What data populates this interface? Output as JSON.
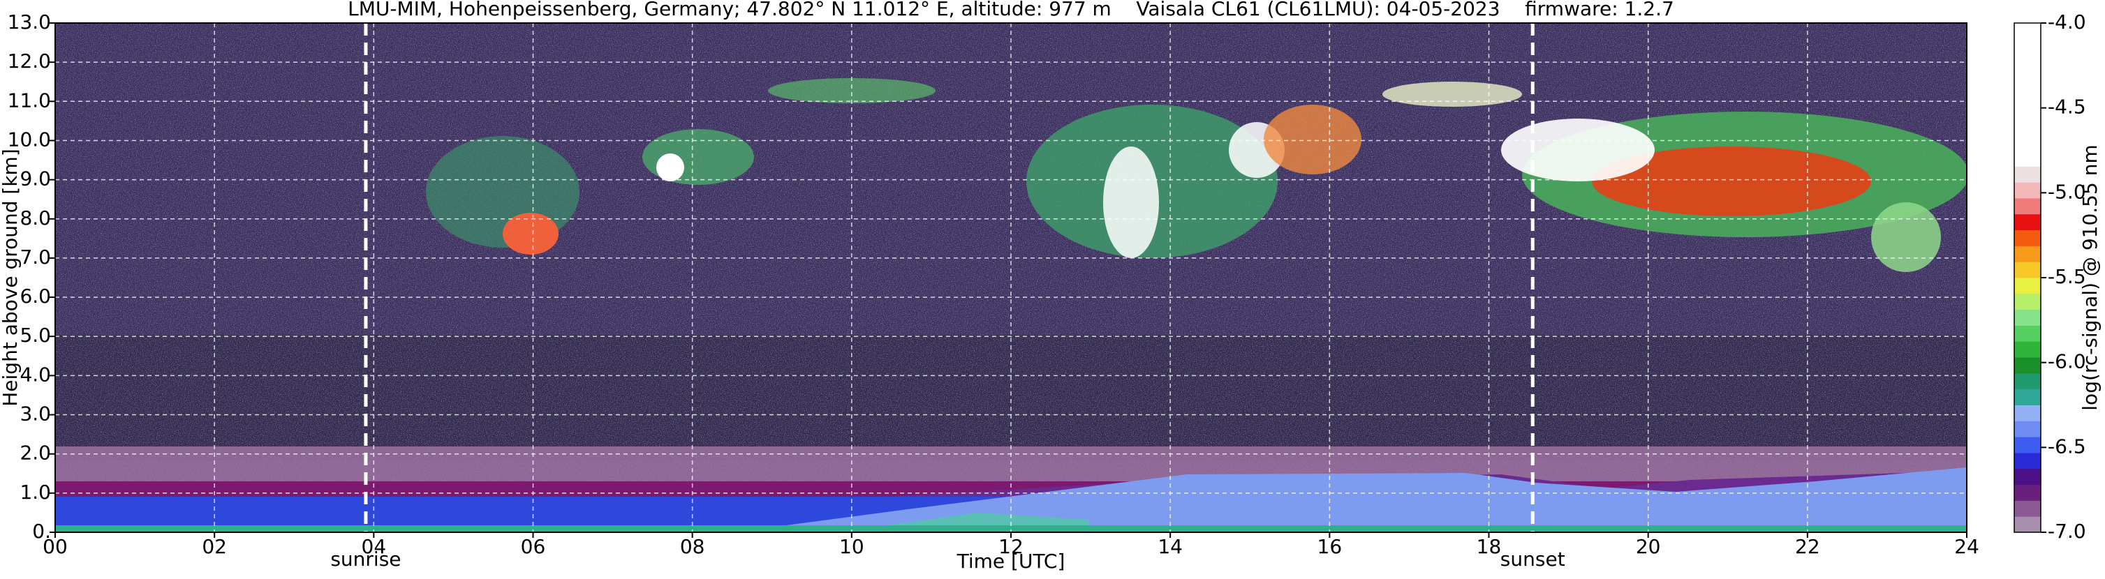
{
  "chart_data": {
    "type": "heatmap",
    "title": "LMU-MIM, Hohenpeissenberg, Germany; 47.802° N 11.012° E, altitude: 977 m    Vaisala CL61 (CL61LMU): 04-05-2023    firmware: 1.2.7",
    "xlabel": "Time [UTC]",
    "ylabel": "Height above ground [km]",
    "xlim": [
      0,
      24
    ],
    "xticks": [
      {
        "value": 0,
        "label": "00"
      },
      {
        "value": 2,
        "label": "02"
      },
      {
        "value": 4,
        "label": "04"
      },
      {
        "value": 6,
        "label": "06"
      },
      {
        "value": 8,
        "label": "08"
      },
      {
        "value": 10,
        "label": "10"
      },
      {
        "value": 12,
        "label": "12"
      },
      {
        "value": 14,
        "label": "14"
      },
      {
        "value": 16,
        "label": "16"
      },
      {
        "value": 18,
        "label": "18"
      },
      {
        "value": 20,
        "label": "20"
      },
      {
        "value": 22,
        "label": "22"
      },
      {
        "value": 24,
        "label": "24"
      }
    ],
    "ylim": [
      0,
      13
    ],
    "yticks": [
      {
        "value": 0,
        "label": "0."
      },
      {
        "value": 1,
        "label": "1.0"
      },
      {
        "value": 2,
        "label": "2.0"
      },
      {
        "value": 3,
        "label": "3.0"
      },
      {
        "value": 4,
        "label": "4.0"
      },
      {
        "value": 5,
        "label": "5.0"
      },
      {
        "value": 6,
        "label": "6.0"
      },
      {
        "value": 7,
        "label": "7.0"
      },
      {
        "value": 8,
        "label": "8.0"
      },
      {
        "value": 9,
        "label": "9.0"
      },
      {
        "value": 10,
        "label": "10.0"
      },
      {
        "value": 11,
        "label": "11.0"
      },
      {
        "value": 12,
        "label": "12.0"
      },
      {
        "value": 13,
        "label": "13.0"
      }
    ],
    "grid": true,
    "annotations": [
      {
        "label": "sunrise",
        "x": 3.9
      },
      {
        "label": "sunset",
        "x": 18.55
      }
    ],
    "colorbar": {
      "label": "log(rc-signal) @ 910.55 nm",
      "lim": [
        -7.0,
        -4.0
      ],
      "ticks": [
        {
          "value": -4.0,
          "label": "-4.0"
        },
        {
          "value": -4.5,
          "label": "-4.5"
        },
        {
          "value": -5.0,
          "label": "-5.0"
        },
        {
          "value": -5.5,
          "label": "-5.5"
        },
        {
          "value": -6.0,
          "label": "-6.0"
        },
        {
          "value": -6.5,
          "label": "-6.5"
        },
        {
          "value": -7.0,
          "label": "-7.0"
        }
      ],
      "colors": [
        "#a98fae",
        "#8b5a94",
        "#6a1f7c",
        "#4b0f86",
        "#2a2bd8",
        "#3f5cf0",
        "#6f8cf2",
        "#94b0f4",
        "#2fa89a",
        "#1f9b6d",
        "#1b8f2a",
        "#31b43a",
        "#55cf5f",
        "#86e38a",
        "#b7ee6a",
        "#e8f040",
        "#f8c828",
        "#f89a1a",
        "#f45a10",
        "#e81010",
        "#f07a7a",
        "#f2b8b8",
        "#ece0e0",
        "#ffffff",
        "#ffffff",
        "#ffffff",
        "#ffffff",
        "#ffffff",
        "#ffffff",
        "#ffffff",
        "#ffffff",
        "#ffffff"
      ]
    }
  }
}
